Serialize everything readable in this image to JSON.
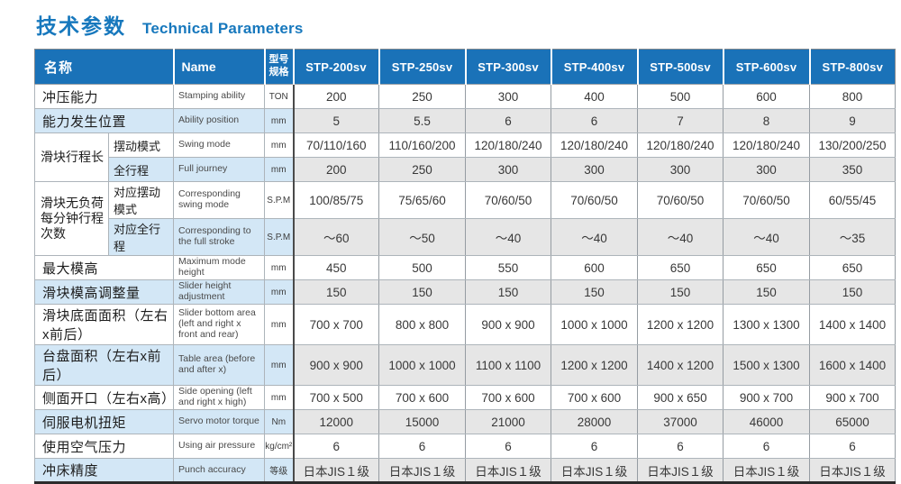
{
  "page": {
    "title_cn": "技术参数",
    "title_en": "Technical Parameters"
  },
  "colors": {
    "header_blue": "#1a72b8",
    "title_blue": "#1778bd",
    "row_shade_blue": "#d3e7f6",
    "row_shade_grey": "#e6e6e6"
  },
  "table": {
    "header": {
      "name_cn": "名称",
      "name_en": "Name",
      "spec_line1": "型号",
      "spec_line2": "规格",
      "models": [
        "STP-200sv",
        "STP-250sv",
        "STP-300sv",
        "STP-400sv",
        "STP-500sv",
        "STP-600sv",
        "STP-800sv"
      ]
    },
    "rows": [
      {
        "type": "plain",
        "cn": "冲压能力",
        "en": "Stamping ability",
        "unit": "TON",
        "shade": false,
        "values": [
          "200",
          "250",
          "300",
          "400",
          "500",
          "600",
          "800"
        ]
      },
      {
        "type": "plain",
        "cn": "能力发生位置",
        "en": "Ability position",
        "unit": "mm",
        "shade": true,
        "values": [
          "5",
          "5.5",
          "6",
          "6",
          "7",
          "8",
          "9"
        ]
      },
      {
        "type": "group-start",
        "group": "滑块行程长",
        "sub": "摆动模式",
        "en": "Swing mode",
        "unit": "mm",
        "shade": false,
        "values": [
          "70/110/160",
          "110/160/200",
          "120/180/240",
          "120/180/240",
          "120/180/240",
          "120/180/240",
          "130/200/250"
        ]
      },
      {
        "type": "group-sub",
        "sub": "全行程",
        "en": "Full journey",
        "unit": "mm",
        "shade": true,
        "values": [
          "200",
          "250",
          "300",
          "300",
          "300",
          "300",
          "350"
        ]
      },
      {
        "type": "group-start",
        "group": "滑块无负荷每分钟行程次数",
        "sub": "对应摆动模式",
        "en": "Corresponding swing mode",
        "unit": "S.P.M",
        "shade": false,
        "values": [
          "100/85/75",
          "75/65/60",
          "70/60/50",
          "70/60/50",
          "70/60/50",
          "70/60/50",
          "60/55/45"
        ]
      },
      {
        "type": "group-sub",
        "sub": "对应全行程",
        "en": "Corresponding to the full stroke",
        "unit": "S.P.M",
        "shade": true,
        "values": [
          "～60",
          "～50",
          "～40",
          "～40",
          "～40",
          "～40",
          "～35"
        ]
      },
      {
        "type": "plain",
        "cn": "最大模高",
        "en": "Maximum mode height",
        "unit": "mm",
        "shade": false,
        "values": [
          "450",
          "500",
          "550",
          "600",
          "650",
          "650",
          "650"
        ]
      },
      {
        "type": "plain",
        "cn": "滑块模高调整量",
        "en": "Slider height adjustment",
        "unit": "mm",
        "shade": true,
        "values": [
          "150",
          "150",
          "150",
          "150",
          "150",
          "150",
          "150"
        ]
      },
      {
        "type": "plain",
        "cn": "滑块底面面积（左右x前后）",
        "en": "Slider bottom area (left and right x front and rear)",
        "unit": "mm",
        "shade": false,
        "values": [
          "700 x 700",
          "800 x 800",
          "900 x 900",
          "1000 x 1000",
          "1200 x 1200",
          "1300 x 1300",
          "1400 x 1400"
        ]
      },
      {
        "type": "plain",
        "cn": "台盘面积（左右x前后）",
        "en": "Table area (before and after x)",
        "unit": "mm",
        "shade": true,
        "values": [
          "900 x 900",
          "1000 x 1000",
          "1100 x 1100",
          "1200 x 1200",
          "1400 x 1200",
          "1500 x 1300",
          "1600 x 1400"
        ]
      },
      {
        "type": "plain",
        "cn": "侧面开口（左右x高）",
        "en": "Side opening (left and right x high)",
        "unit": "mm",
        "shade": false,
        "values": [
          "700 x 500",
          "700 x 600",
          "700 x 600",
          "700 x 600",
          "900 x 650",
          "900 x 700",
          "900 x 700"
        ]
      },
      {
        "type": "plain",
        "cn": "伺服电机扭矩",
        "en": "Servo motor torque",
        "unit": "Nm",
        "shade": true,
        "values": [
          "12000",
          "15000",
          "21000",
          "28000",
          "37000",
          "46000",
          "65000"
        ]
      },
      {
        "type": "plain",
        "cn": "使用空气压力",
        "en": "Using air pressure",
        "unit": "kg/cm²",
        "shade": false,
        "values": [
          "6",
          "6",
          "6",
          "6",
          "6",
          "6",
          "6"
        ]
      },
      {
        "type": "plain",
        "cn": "冲床精度",
        "en": "Punch accuracy",
        "unit": "等级",
        "shade": true,
        "values": [
          "日本JIS１级",
          "日本JIS１级",
          "日本JIS１级",
          "日本JIS１级",
          "日本JIS１级",
          "日本JIS１级",
          "日本JIS１级"
        ]
      }
    ]
  }
}
